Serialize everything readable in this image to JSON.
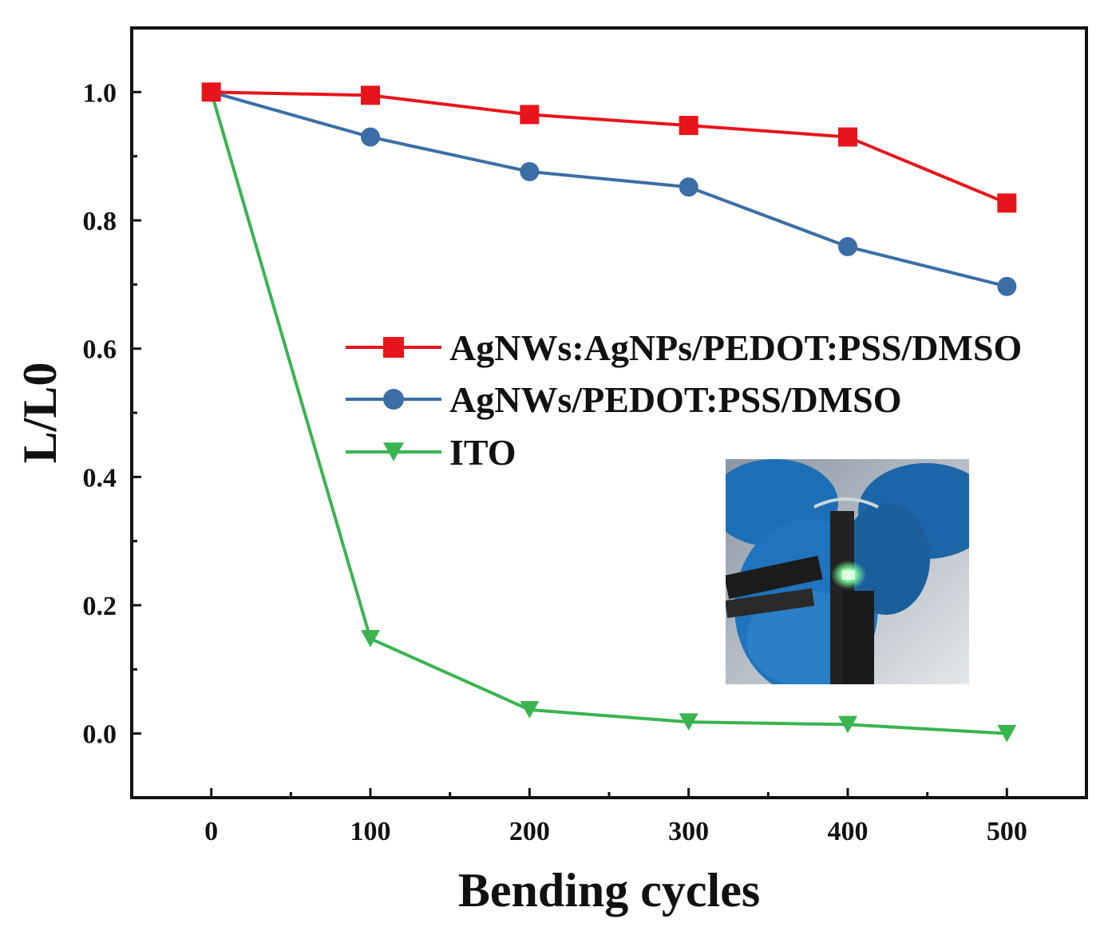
{
  "chart_data": {
    "type": "line",
    "xlabel": "Bending cycles",
    "ylabel": "L/L0",
    "x": [
      0,
      100,
      200,
      300,
      400,
      500
    ],
    "xlim": [
      -50,
      550
    ],
    "ylim": [
      -0.1,
      1.1
    ],
    "xticks": [
      "0",
      "100",
      "200",
      "300",
      "400",
      "500"
    ],
    "yticks": [
      "0.0",
      "0.2",
      "0.4",
      "0.6",
      "0.8",
      "1.0"
    ],
    "legend_position": "center-right",
    "grid": false,
    "series": [
      {
        "name": "AgNWs:AgNPs/PEDOT:PSS/DMSO",
        "color": "#e8141b",
        "marker": "square",
        "values": [
          1.0,
          0.995,
          0.965,
          0.948,
          0.93,
          0.827
        ]
      },
      {
        "name": "AgNWs/PEDOT:PSS/DMSO",
        "color": "#3a6ea5",
        "marker": "circle",
        "values": [
          1.0,
          0.93,
          0.876,
          0.852,
          0.759,
          0.697
        ]
      },
      {
        "name": "ITO",
        "color": "#39b44f",
        "marker": "triangle-down",
        "values": [
          1.0,
          0.148,
          0.037,
          0.018,
          0.014,
          0.0
        ]
      }
    ],
    "inset": {
      "description": "photo of flexible device being bent",
      "colors": {
        "glove": "#1d6fb5",
        "glow": "#7dff9a",
        "background": "#c9cdd2"
      }
    }
  }
}
